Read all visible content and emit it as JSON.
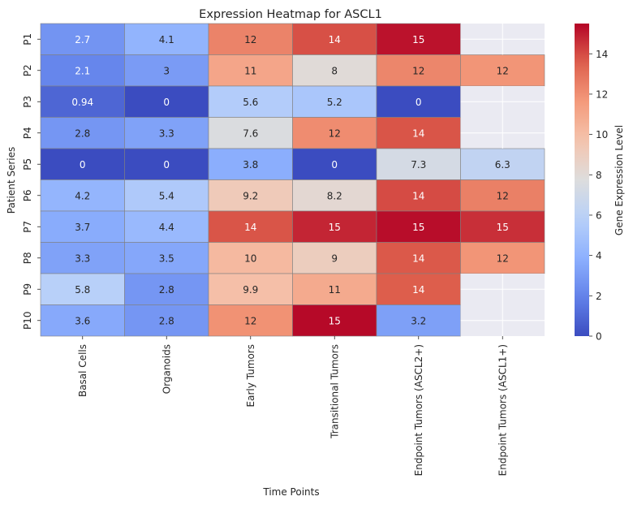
{
  "chart_data": {
    "type": "heatmap",
    "title": "Expression Heatmap for ASCL1",
    "xlabel": "Time Points",
    "ylabel": "Patient Series",
    "colorbar_label": "Gene Expression Level",
    "colormap": "coolwarm",
    "missing_color": "#eaeaf2",
    "vmin": 0,
    "vmax": 15.5,
    "colorbar_ticks": [
      "0",
      "2",
      "4",
      "6",
      "8",
      "10",
      "12",
      "14"
    ],
    "columns": [
      "Basal Cells",
      "Organoids",
      "Early Tumors",
      "Transitional Tumors",
      "Endpoint Tumors (ASCL2+)",
      "Endpoint Tumors (ASCL1+)"
    ],
    "rows": [
      "P1",
      "P2",
      "P3",
      "P4",
      "P5",
      "P6",
      "P7",
      "P8",
      "P9",
      "P10"
    ],
    "values": [
      [
        2.7,
        4.1,
        12.4,
        13.9,
        15.2,
        null
      ],
      [
        2.1,
        3.0,
        11.1,
        8.0,
        12.3,
        11.8
      ],
      [
        0.94,
        0.0,
        5.6,
        5.2,
        0.0,
        null
      ],
      [
        2.8,
        3.3,
        7.6,
        12.1,
        13.8,
        null
      ],
      [
        0.0,
        0.0,
        3.8,
        0.0,
        7.3,
        6.3
      ],
      [
        4.2,
        5.4,
        9.2,
        8.2,
        14.0,
        12.5
      ],
      [
        3.7,
        4.4,
        13.8,
        14.8,
        15.3,
        14.6
      ],
      [
        3.3,
        3.5,
        10.2,
        9.0,
        13.7,
        11.8
      ],
      [
        5.8,
        2.8,
        9.9,
        10.9,
        13.6,
        null
      ],
      [
        3.6,
        2.8,
        11.9,
        15.4,
        3.2,
        null
      ]
    ],
    "labels": [
      [
        "2.7",
        "4.1",
        "12",
        "14",
        "15",
        ""
      ],
      [
        "2.1",
        "3",
        "11",
        "8",
        "12",
        "12"
      ],
      [
        "0.94",
        "0",
        "5.6",
        "5.2",
        "0",
        ""
      ],
      [
        "2.8",
        "3.3",
        "7.6",
        "12",
        "14",
        ""
      ],
      [
        "0",
        "0",
        "3.8",
        "0",
        "7.3",
        "6.3"
      ],
      [
        "4.2",
        "5.4",
        "9.2",
        "8.2",
        "14",
        "12"
      ],
      [
        "3.7",
        "4.4",
        "14",
        "15",
        "15",
        "15"
      ],
      [
        "3.3",
        "3.5",
        "10",
        "9",
        "14",
        "12"
      ],
      [
        "5.8",
        "2.8",
        "9.9",
        "11",
        "14",
        ""
      ],
      [
        "3.6",
        "2.8",
        "12",
        "15",
        "3.2",
        ""
      ]
    ]
  }
}
